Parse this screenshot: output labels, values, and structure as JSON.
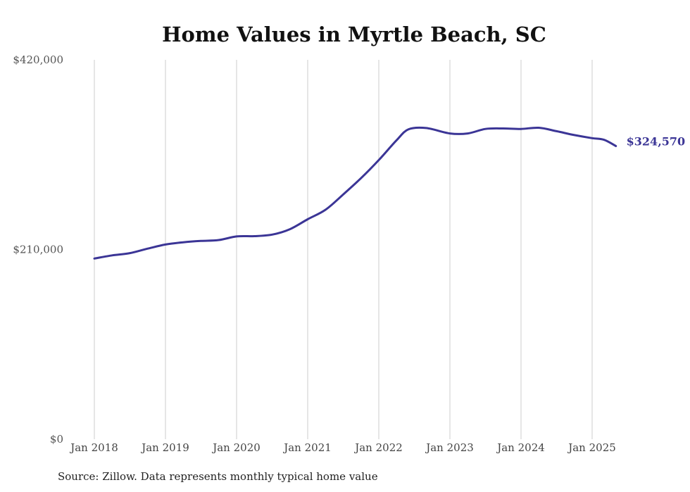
{
  "chart_data": {
    "type": "line",
    "title": "Home Values in Myrtle Beach, SC",
    "xlabel": "",
    "ylabel": "",
    "ylim": [
      0,
      420000
    ],
    "y_ticks": [
      "$420,000",
      "$210,000",
      "$0"
    ],
    "y_tick_values": [
      420000,
      210000,
      0
    ],
    "x_ticks": [
      "Jan 2018",
      "Jan 2019",
      "Jan 2020",
      "Jan 2021",
      "Jan 2022",
      "Jan 2023",
      "Jan 2024",
      "Jan 2025"
    ],
    "x_range": [
      "2018-01",
      "2025-05"
    ],
    "grid": "vertical",
    "line_color": "#3b3596",
    "end_label": "$324,570",
    "series": [
      {
        "x": [
          "2018-01",
          "2018-04",
          "2018-07",
          "2018-10",
          "2019-01",
          "2019-04",
          "2019-07",
          "2019-10",
          "2020-01",
          "2020-04",
          "2020-07",
          "2020-10",
          "2021-01",
          "2021-04",
          "2021-07",
          "2021-10",
          "2022-01",
          "2022-04",
          "2022-06",
          "2022-09",
          "2023-01",
          "2023-04",
          "2023-07",
          "2023-10",
          "2024-01",
          "2024-04",
          "2024-07",
          "2024-10",
          "2025-01",
          "2025-03",
          "2025-05"
        ],
        "values": [
          200000,
          203500,
          206000,
          211000,
          215500,
          218000,
          219500,
          220500,
          224500,
          224800,
          226500,
          232500,
          243500,
          254000,
          271000,
          289000,
          309000,
          331000,
          343000,
          344500,
          338500,
          338500,
          343500,
          344000,
          343500,
          344800,
          341000,
          336700,
          333300,
          331500,
          324570
        ]
      }
    ]
  },
  "source_note": "Source: Zillow. Data represents monthly typical home value"
}
